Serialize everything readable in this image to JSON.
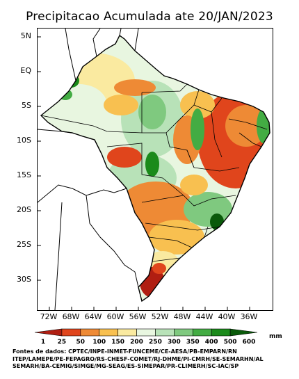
{
  "title": "Precipitacao Acumulada ate 20/JAN/2023",
  "lat_labels": [
    "5N",
    "EQ",
    "5S",
    "10S",
    "15S",
    "20S",
    "25S",
    "30S"
  ],
  "lon_labels": [
    "72W",
    "68W",
    "64W",
    "60W",
    "56W",
    "52W",
    "48W",
    "44W",
    "40W",
    "36W"
  ],
  "legend": {
    "unit": "mm",
    "values": [
      "1",
      "25",
      "50",
      "100",
      "150",
      "200",
      "250",
      "300",
      "350",
      "400",
      "500",
      "600"
    ],
    "colors": [
      "#b01e12",
      "#e0451c",
      "#ee8a35",
      "#f8c050",
      "#faeaa0",
      "#e8f6e0",
      "#b8e2b8",
      "#7fc97f",
      "#43ac43",
      "#1a8a1a",
      "#0a5a0a"
    ]
  },
  "sources": [
    "Fontes de dados: CPTEC/INPE-INMET-FUNCEME/CE-AESA/PB-EMPARN/RN",
    "ITEP/LAMEPE/PE-FEPAGRO/RS-CHESF-COMET/RJ-DHME/PI-CMRH/SE-SEMARHN/AL",
    "SEMARH/BA-CEMIG/SIMGE/MG-SEAG/ES-SIMEPAR/PR-CLIMERH/SC-IAC/SP"
  ]
}
